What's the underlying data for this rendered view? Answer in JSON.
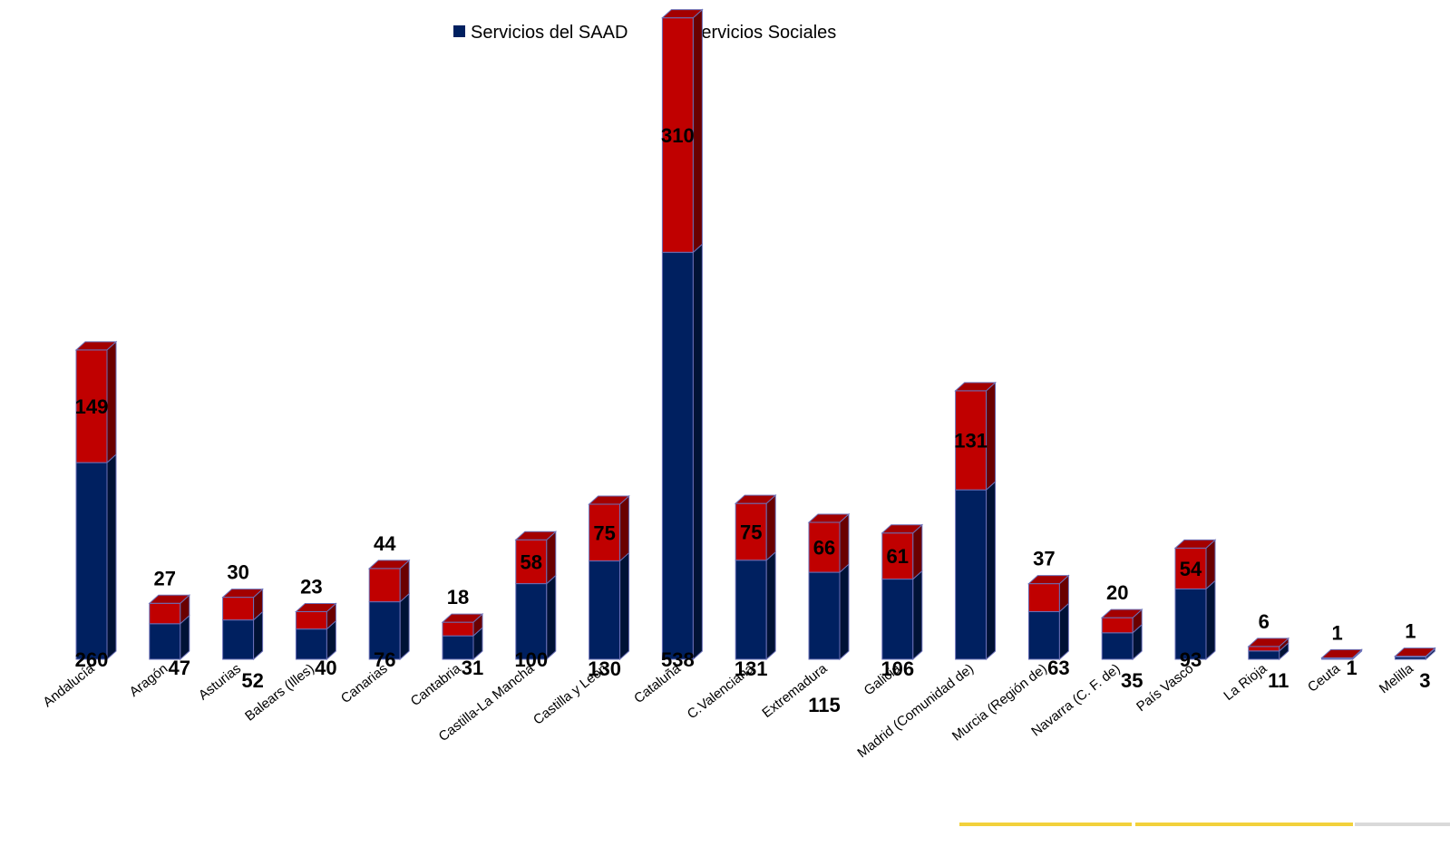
{
  "chart_data": {
    "type": "bar",
    "stacked": true,
    "style": "3d-column",
    "categories": [
      "Andalucía",
      "Aragón",
      "Asturias",
      "Balears (Illes)",
      "Canarias",
      "Cantabria",
      "Castilla-La Mancha",
      "Castilla y León",
      "Cataluña",
      "C.Valenciana",
      "Extremadura",
      "Galicia",
      "Madrid (Comunidad de)",
      "Murcia (Región de)",
      "Navarra (C. F. de)",
      "País Vasco",
      "La Rioja",
      "Ceuta",
      "Melilla"
    ],
    "series": [
      {
        "name": "Servicios del SAAD",
        "color": "#002060",
        "values": [
          260,
          47,
          52,
          40,
          76,
          31,
          100,
          130,
          538,
          131,
          115,
          106,
          224,
          63,
          35,
          93,
          11,
          1,
          3
        ]
      },
      {
        "name": "Servicios Sociales",
        "color": "#c00000",
        "values": [
          149,
          27,
          30,
          23,
          44,
          18,
          58,
          75,
          310,
          75,
          66,
          61,
          131,
          37,
          20,
          54,
          6,
          1,
          1
        ]
      }
    ],
    "data_labels": {
      "Servicios del SAAD": [
        "260",
        "47",
        "52",
        "40",
        "76",
        "31",
        "100",
        "130",
        "538",
        "131",
        "115",
        "106",
        "",
        "63",
        "35",
        "93",
        "11",
        "1",
        "3"
      ],
      "Servicios Sociales": [
        "149",
        "27",
        "30",
        "23",
        "44",
        "18",
        "58",
        "75",
        "310",
        "75",
        "66",
        "61",
        "131",
        "37",
        "20",
        "54",
        "6",
        "1",
        "1"
      ]
    },
    "ylim": [
      0,
      850
    ],
    "grid": false,
    "legend": "top-center",
    "title": "",
    "xlabel": "",
    "ylabel": ""
  }
}
